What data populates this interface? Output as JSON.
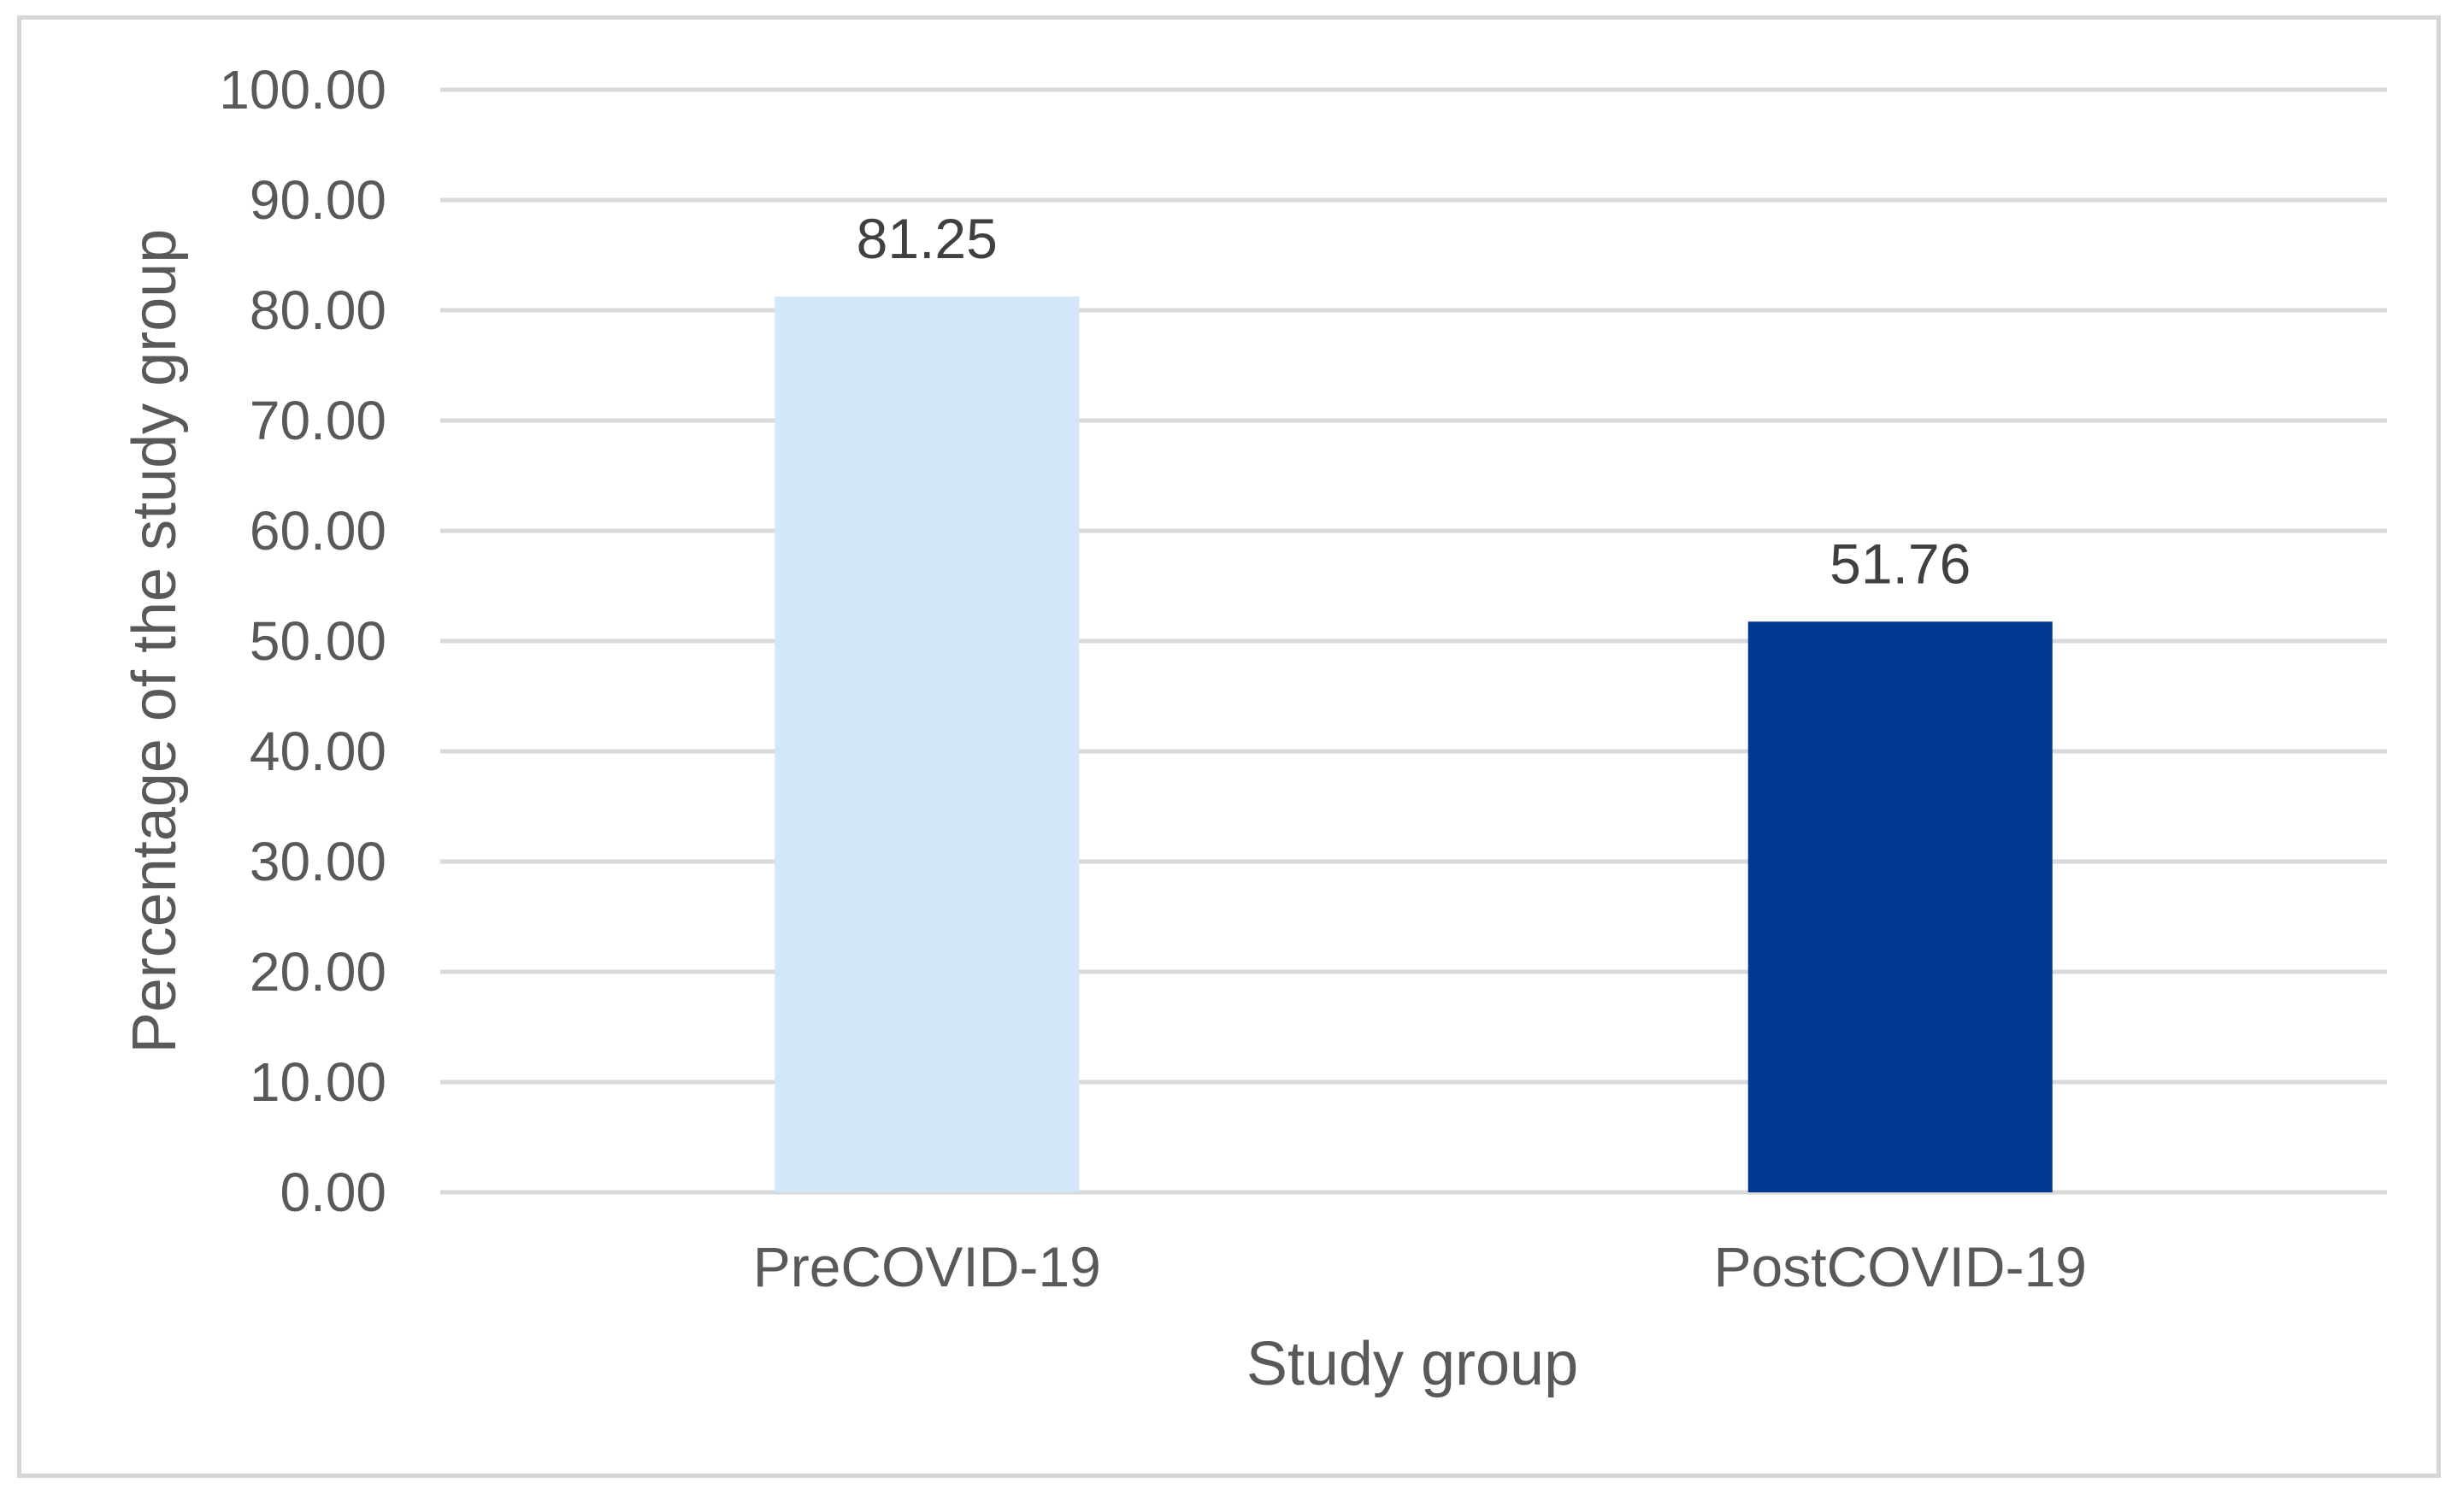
{
  "chart_data": {
    "type": "bar",
    "title": "",
    "xlabel": "Study group",
    "ylabel": "Percentage of the study group",
    "categories": [
      "PreCOVID-19",
      "PostCOVID-19"
    ],
    "values": [
      81.25,
      51.76
    ],
    "data_labels": [
      "81.25",
      "51.76"
    ],
    "bar_colors": [
      "#d3e6fa",
      "#003893"
    ],
    "ylim": [
      0,
      100
    ],
    "yticks": [
      0,
      10,
      20,
      30,
      40,
      50,
      60,
      70,
      80,
      90,
      100
    ],
    "ytick_labels": [
      "0.00",
      "10.00",
      "20.00",
      "30.00",
      "40.00",
      "50.00",
      "60.00",
      "70.00",
      "80.00",
      "90.00",
      "100.00"
    ],
    "grid": true,
    "legend": "none"
  }
}
